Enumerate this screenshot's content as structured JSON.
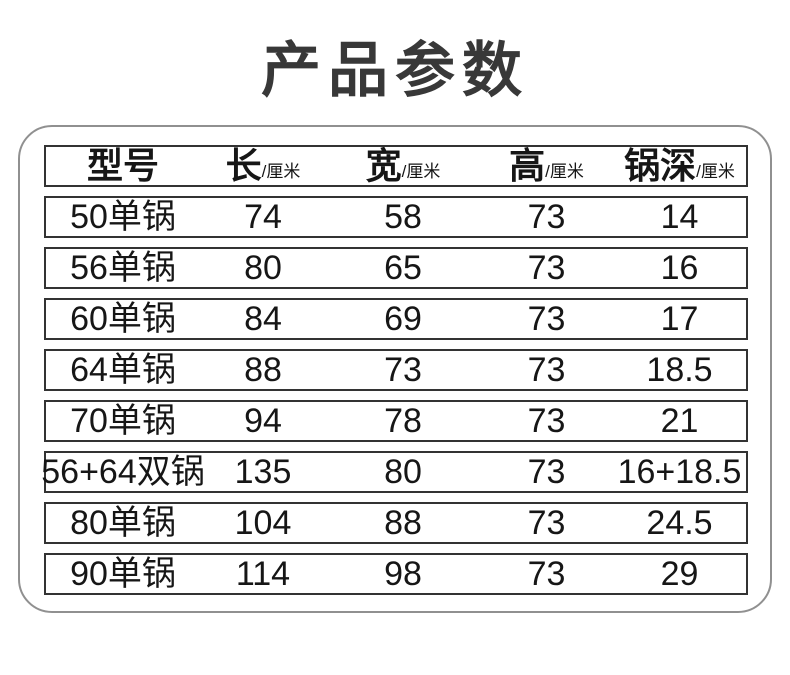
{
  "title": "产品参数",
  "colors": {
    "background": "#ffffff",
    "title": "#383838",
    "panel_border": "#909090",
    "row_border": "#333333",
    "text": "#161616"
  },
  "table": {
    "columns": [
      {
        "label": "型号",
        "unit": ""
      },
      {
        "label": "长",
        "unit": "/厘米"
      },
      {
        "label": "宽",
        "unit": "/厘米"
      },
      {
        "label": "高",
        "unit": "/厘米"
      },
      {
        "label": "锅深",
        "unit": "/厘米"
      }
    ],
    "rows": [
      {
        "model": "50单锅",
        "length": "74",
        "width": "58",
        "height": "73",
        "depth": "14"
      },
      {
        "model": "56单锅",
        "length": "80",
        "width": "65",
        "height": "73",
        "depth": "16"
      },
      {
        "model": "60单锅",
        "length": "84",
        "width": "69",
        "height": "73",
        "depth": "17"
      },
      {
        "model": "64单锅",
        "length": "88",
        "width": "73",
        "height": "73",
        "depth": "18.5"
      },
      {
        "model": "70单锅",
        "length": "94",
        "width": "78",
        "height": "73",
        "depth": "21"
      },
      {
        "model": "56+64双锅",
        "length": "135",
        "width": "80",
        "height": "73",
        "depth": "16+18.5"
      },
      {
        "model": "80单锅",
        "length": "104",
        "width": "88",
        "height": "73",
        "depth": "24.5"
      },
      {
        "model": "90单锅",
        "length": "114",
        "width": "98",
        "height": "73",
        "depth": "29"
      }
    ]
  }
}
